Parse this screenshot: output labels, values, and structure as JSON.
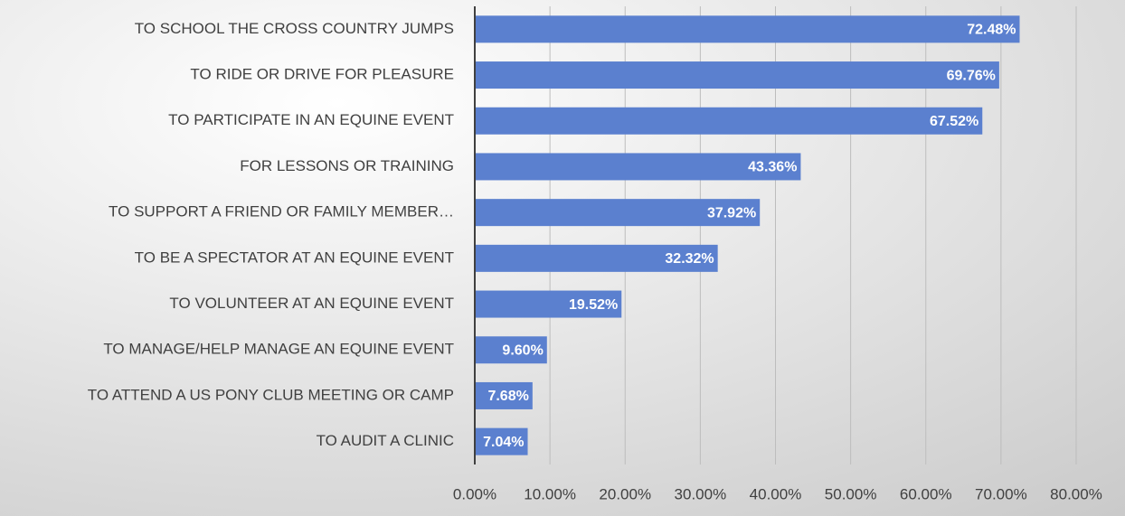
{
  "chart_data": {
    "type": "hbar",
    "categories": [
      "TO SCHOOL THE CROSS COUNTRY JUMPS",
      "TO RIDE OR DRIVE FOR PLEASURE",
      "TO PARTICIPATE IN AN EQUINE EVENT",
      "FOR LESSONS OR TRAINING",
      "TO SUPPORT A FRIEND OR FAMILY MEMBER…",
      "TO BE A SPECTATOR AT AN EQUINE EVENT",
      "TO VOLUNTEER AT AN EQUINE EVENT",
      "TO MANAGE/HELP MANAGE AN EQUINE EVENT",
      "TO ATTEND A US PONY CLUB MEETING OR CAMP",
      "TO AUDIT A CLINIC"
    ],
    "values": [
      72.48,
      69.76,
      67.52,
      43.36,
      37.92,
      32.32,
      19.52,
      9.6,
      7.68,
      7.04
    ],
    "value_labels": [
      "72.48%",
      "69.76%",
      "67.52%",
      "43.36%",
      "37.92%",
      "32.32%",
      "19.52%",
      "9.60%",
      "7.68%",
      "7.04%"
    ],
    "color": "#5b80cf",
    "xlim": [
      0,
      80
    ],
    "xticks": [
      {
        "value": 0,
        "label": "0.00%"
      },
      {
        "value": 10,
        "label": "10.00%"
      },
      {
        "value": 20,
        "label": "20.00%"
      },
      {
        "value": 30,
        "label": "30.00%"
      },
      {
        "value": 40,
        "label": "40.00%"
      },
      {
        "value": 50,
        "label": "50.00%"
      },
      {
        "value": 60,
        "label": "60.00%"
      },
      {
        "value": 70,
        "label": "70.00%"
      },
      {
        "value": 80,
        "label": "80.00%"
      }
    ],
    "grid": true
  }
}
